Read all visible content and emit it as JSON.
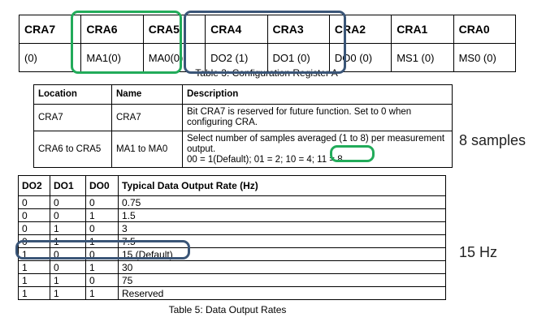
{
  "table3": {
    "headers": [
      "CRA7",
      "CRA6",
      "CRA5",
      "CRA4",
      "CRA3",
      "CRA2",
      "CRA1",
      "CRA0"
    ],
    "values": [
      "(0)",
      "MA1(0)",
      "MA0(0)",
      "DO2 (1)",
      "DO1 (0)",
      "DO0 (0)",
      "MS1 (0)",
      "MS0 (0)"
    ],
    "caption": "Table 3: Configuration Register A"
  },
  "location_table": {
    "headers": [
      "Location",
      "Name",
      "Description"
    ],
    "rows": [
      [
        "CRA7",
        "CRA7",
        "Bit CRA7 is reserved for future function. Set to 0 when configuring CRA."
      ],
      [
        "CRA6 to CRA5",
        "MA1 to MA0",
        "Select number of samples averaged (1 to 8) per measurement output."
      ]
    ],
    "row2_line2": "00 = 1(Default); 01 = 2; 10 = 4;",
    "row2_highlight": "11 = 8"
  },
  "notes": {
    "samples": "8 samples",
    "rate": "15 Hz"
  },
  "table5": {
    "headers": [
      "DO2",
      "DO1",
      "DO0",
      "Typical Data Output Rate (Hz)"
    ],
    "rows": [
      [
        "0",
        "0",
        "0",
        "0.75"
      ],
      [
        "0",
        "0",
        "1",
        "1.5"
      ],
      [
        "0",
        "1",
        "0",
        "3"
      ],
      [
        "0",
        "1",
        "1",
        "7.5"
      ],
      [
        "1",
        "0",
        "0",
        "15 (Default)"
      ],
      [
        "1",
        "0",
        "1",
        "30"
      ],
      [
        "1",
        "1",
        "0",
        "75"
      ],
      [
        "1",
        "1",
        "1",
        "Reserved"
      ]
    ],
    "caption": "Table 5: Data Output Rates"
  },
  "colors": {
    "green_highlight": "#22ab5a",
    "blue_highlight": "#3a5577"
  }
}
